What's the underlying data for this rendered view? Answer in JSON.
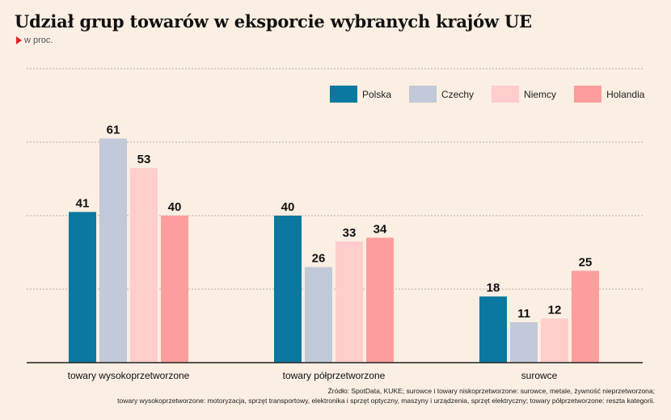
{
  "header": {
    "title": "Udział grup towarów w eksporcie wybranych krajów UE",
    "subtitle": "w proc."
  },
  "source": {
    "line1": "Źródło: SpotData, KUKE; surowce i towary niskoprzetworzone: surowce, metale, żywność nieprzetworzona;",
    "line2": "towary wysokoprzetworzone: motoryzacja, sprzęt transportowy, elektronika i sprzęt optyczny, maszyny i urządzenia, sprzęt elektryczny; towary półprzetworzone: reszta kategorii."
  },
  "chart_data": {
    "type": "bar",
    "title": "Udział grup towarów w eksporcie wybranych krajów UE",
    "ylabel": "w proc.",
    "ylim": [
      0,
      80
    ],
    "grid": true,
    "legend_position": "top-right",
    "categories": [
      "towary wysokoprzetworzone",
      "towary półprzetworzone",
      "surowce"
    ],
    "series": [
      {
        "name": "Polska",
        "color": "#0a789f",
        "values": [
          41,
          40,
          18
        ]
      },
      {
        "name": "Czechy",
        "color": "#c2c9d8",
        "values": [
          61,
          26,
          11
        ]
      },
      {
        "name": "Niemcy",
        "color": "#ffcdcb",
        "values": [
          53,
          33,
          12
        ]
      },
      {
        "name": "Holandia",
        "color": "#fd9e9c",
        "values": [
          40,
          34,
          25
        ]
      }
    ]
  }
}
